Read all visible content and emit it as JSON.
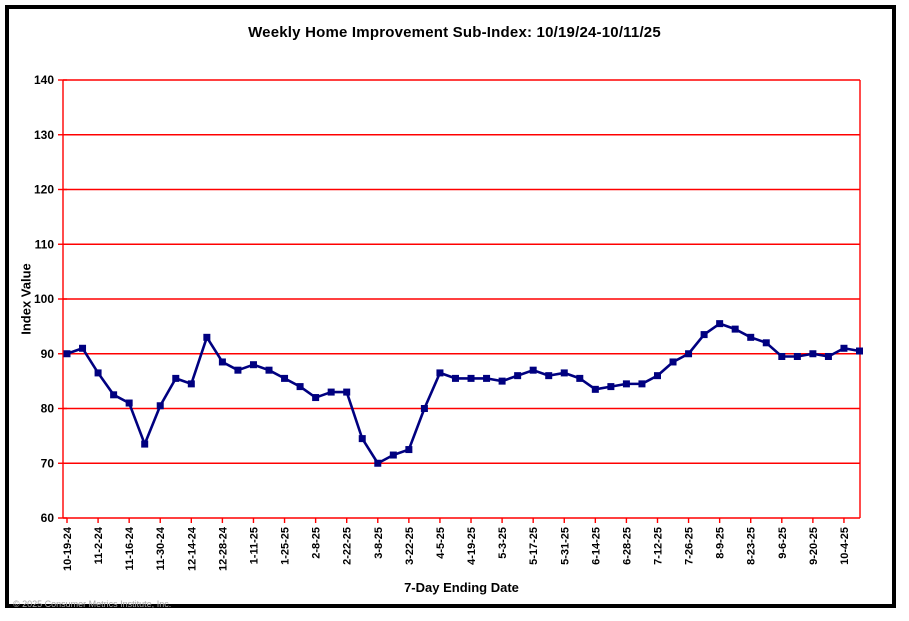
{
  "page": {
    "footer_copyright": "© 2025 Consumer Metrics Institute, Inc."
  },
  "chart_data": {
    "type": "line",
    "title": "Weekly Home Improvement Sub-Index: 10/19/24-10/11/25",
    "xlabel": "7-Day Ending Date",
    "ylabel": "Index Value",
    "ylim": [
      60,
      140
    ],
    "ytick_step": 10,
    "grid": "horizontal",
    "legend_position": "none",
    "marker": "square",
    "x_label_every": 2,
    "colors": {
      "line": "#000080",
      "grid": "#ff0000",
      "text": "#000000"
    },
    "x": [
      "10-19-24",
      "10-26-24",
      "11-2-24",
      "11-9-24",
      "11-16-24",
      "11-23-24",
      "11-30-24",
      "12-7-24",
      "12-14-24",
      "12-21-24",
      "12-28-24",
      "1-4-25",
      "1-11-25",
      "1-18-25",
      "1-25-25",
      "2-1-25",
      "2-8-25",
      "2-15-25",
      "2-22-25",
      "3-1-25",
      "3-8-25",
      "3-15-25",
      "3-22-25",
      "3-29-25",
      "4-5-25",
      "4-12-25",
      "4-19-25",
      "4-26-25",
      "5-3-25",
      "5-10-25",
      "5-17-25",
      "5-24-25",
      "5-31-25",
      "6-7-25",
      "6-14-25",
      "6-21-25",
      "6-28-25",
      "7-5-25",
      "7-12-25",
      "7-19-25",
      "7-26-25",
      "8-2-25",
      "8-9-25",
      "8-16-25",
      "8-23-25",
      "8-30-25",
      "9-6-25",
      "9-13-25",
      "9-20-25",
      "9-27-25",
      "10-4-25",
      "10-11-25"
    ],
    "series": [
      {
        "name": "Weekly Home Improvement Sub-Index",
        "values": [
          90,
          91,
          86.5,
          82.5,
          81,
          73.5,
          80.5,
          85.5,
          84.5,
          93,
          88.5,
          87,
          88,
          87,
          85.5,
          84,
          82,
          83,
          83,
          74.5,
          70,
          71.5,
          72.5,
          80,
          86.5,
          85.5,
          85.5,
          85.5,
          85,
          86,
          87,
          86,
          86.5,
          85.5,
          83.5,
          84,
          84.5,
          84.5,
          86,
          88.5,
          90,
          93.5,
          95.5,
          94.5,
          93,
          92,
          89.5,
          89.5,
          90,
          89.5,
          91,
          90.5
        ]
      }
    ]
  }
}
